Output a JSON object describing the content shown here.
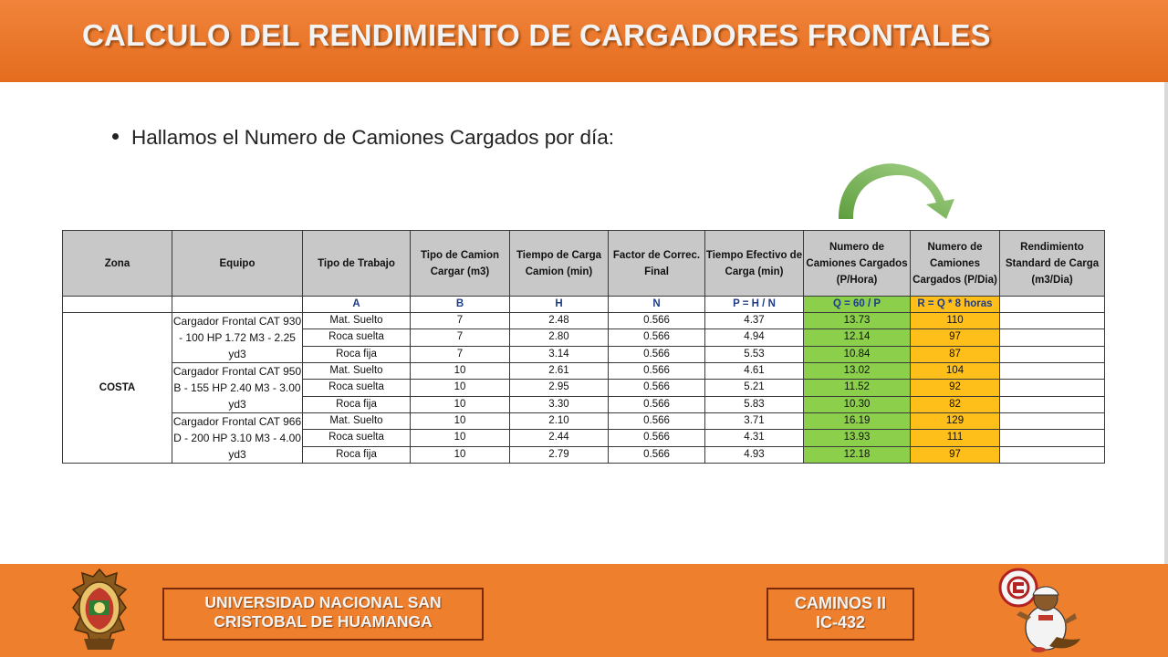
{
  "header": {
    "title": "CALCULO DEL RENDIMIENTO DE CARGADORES FRONTALES"
  },
  "intro": {
    "bullet": "Hallamos el Numero de Camiones Cargados por día:"
  },
  "table": {
    "headers": [
      "Zona",
      "Equipo",
      "Tipo de Trabajo",
      "Tipo de Camion Cargar (m3)",
      "Tiempo de Carga Camion (min)",
      "Factor de Correc. Final",
      "Tiempo Efectivo de Carga (min)",
      "Numero de Camiones Cargados (P/Hora)",
      "Numero de Camiones Cargados (P/Dia)",
      "Rendimiento Standard de Carga (m3/Dia)"
    ],
    "formula_row": [
      "",
      "",
      "A",
      "B",
      "H",
      "N",
      "P = H / N",
      "Q = 60 / P",
      "R = Q * 8 horas",
      ""
    ],
    "zona": "COSTA",
    "equipos": [
      "Cargador Frontal CAT 930 - 100 HP 1.72 M3 - 2.25 yd3",
      "Cargador Frontal CAT 950 B - 155 HP 2.40 M3 - 3.00 yd3",
      "Cargador Frontal CAT 966 D - 200 HP 3.10 M3 - 4.00 yd3"
    ],
    "rows": [
      [
        "Mat. Suelto",
        "7",
        "2.48",
        "0.566",
        "4.37",
        "13.73",
        "110",
        ""
      ],
      [
        "Roca suelta",
        "7",
        "2.80",
        "0.566",
        "4.94",
        "12.14",
        "97",
        ""
      ],
      [
        "Roca fija",
        "7",
        "3.14",
        "0.566",
        "5.53",
        "10.84",
        "87",
        ""
      ],
      [
        "Mat. Suelto",
        "10",
        "2.61",
        "0.566",
        "4.61",
        "13.02",
        "104",
        ""
      ],
      [
        "Roca suelta",
        "10",
        "2.95",
        "0.566",
        "5.21",
        "11.52",
        "92",
        ""
      ],
      [
        "Roca fija",
        "10",
        "3.30",
        "0.566",
        "5.83",
        "10.30",
        "82",
        ""
      ],
      [
        "Mat. Suelto",
        "10",
        "2.10",
        "0.566",
        "3.71",
        "16.19",
        "129",
        ""
      ],
      [
        "Roca suelta",
        "10",
        "2.44",
        "0.566",
        "4.31",
        "13.93",
        "111",
        ""
      ],
      [
        "Roca fija",
        "10",
        "2.79",
        "0.566",
        "4.93",
        "12.18",
        "97",
        ""
      ]
    ]
  },
  "footer": {
    "university_line1": "UNIVERSIDAD NACIONAL SAN",
    "university_line2": "CRISTOBAL DE HUAMANGA",
    "course_line1": "CAMINOS II",
    "course_line2": "IC-432",
    "logo_left": "university-crest-icon",
    "logo_right": "faculty-mascot-logo-icon"
  },
  "colors": {
    "accent_orange": "#ee7f2d",
    "header_gray": "#c8c8c8",
    "green_col": "#8bcf4a",
    "gold_col": "#ffbf1a",
    "arrow_green": "#7fb85a"
  }
}
